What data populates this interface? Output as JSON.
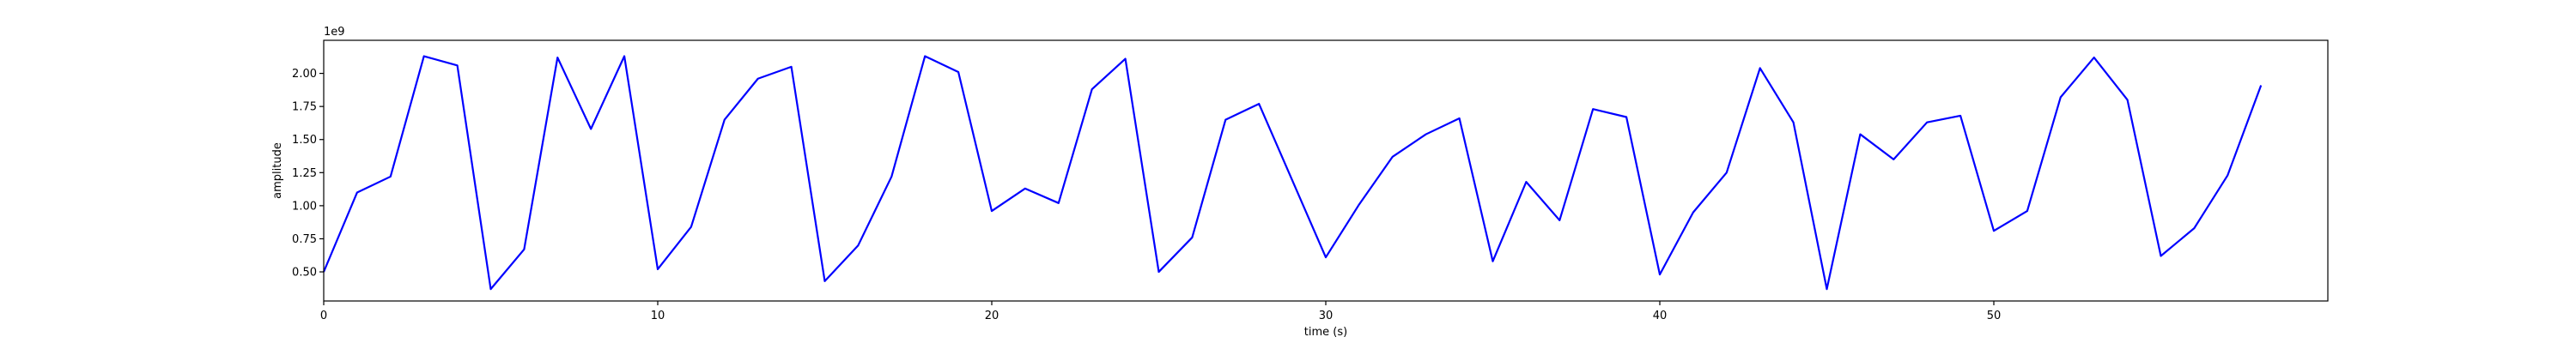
{
  "chart_data": {
    "type": "line",
    "title": "",
    "xlabel": "time (s)",
    "ylabel": "amplitude",
    "y_offset_text": "1e9",
    "y_scale_multiplier": 1000000000,
    "xlim": [
      0,
      60
    ],
    "ylim": [
      0.28,
      2.25
    ],
    "x_ticks": [
      0,
      10,
      20,
      30,
      40,
      50
    ],
    "x_tick_labels": [
      "0",
      "10",
      "20",
      "30",
      "40",
      "50"
    ],
    "y_ticks": [
      0.5,
      0.75,
      1.0,
      1.25,
      1.5,
      1.75,
      2.0
    ],
    "y_tick_labels": [
      "0.50",
      "0.75",
      "1.00",
      "1.25",
      "1.50",
      "1.75",
      "2.00"
    ],
    "grid": false,
    "legend": "none",
    "series": [
      {
        "color": "#0000ff",
        "x": [
          0,
          1,
          2,
          3,
          4,
          5,
          6,
          7,
          8,
          9,
          10,
          11,
          12,
          13,
          14,
          15,
          16,
          17,
          18,
          19,
          20,
          21,
          22,
          23,
          24,
          25,
          26,
          27,
          28,
          29,
          30,
          31,
          32,
          33,
          34,
          35,
          36,
          37,
          38,
          39,
          40,
          41,
          42,
          43,
          44,
          45,
          46,
          47,
          48,
          49,
          50,
          51,
          52,
          53,
          54,
          55,
          56,
          57,
          58
        ],
        "values": [
          0.5,
          1.1,
          1.22,
          2.13,
          2.06,
          0.37,
          0.67,
          2.12,
          1.58,
          2.13,
          0.52,
          0.84,
          1.65,
          1.96,
          2.05,
          0.43,
          0.7,
          1.22,
          2.13,
          2.01,
          0.96,
          1.13,
          1.02,
          1.88,
          2.11,
          0.5,
          0.76,
          1.65,
          1.77,
          1.19,
          0.61,
          1.01,
          1.37,
          1.54,
          1.66,
          0.58,
          1.18,
          0.89,
          1.73,
          1.67,
          0.48,
          0.95,
          1.25,
          2.04,
          1.63,
          0.37,
          1.54,
          1.35,
          1.63,
          1.68,
          0.81,
          0.96,
          1.82,
          2.12,
          1.8,
          0.62,
          0.83,
          1.23,
          1.91
        ]
      }
    ]
  }
}
